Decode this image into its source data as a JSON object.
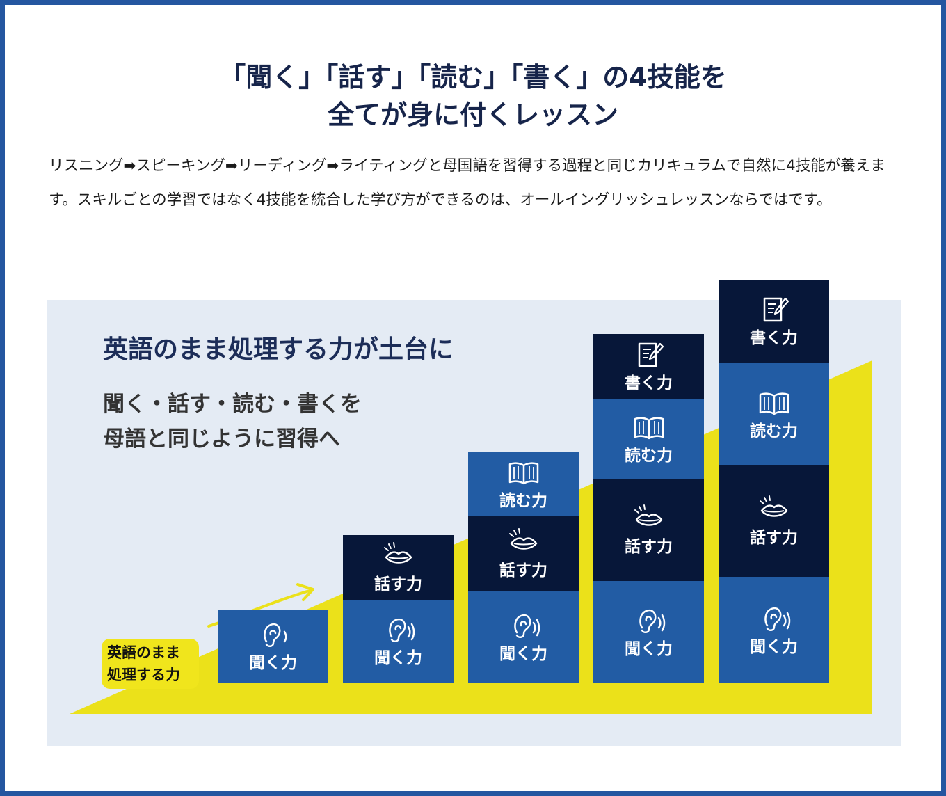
{
  "heading": {
    "line1": "「聞く」「話す」「読む」「書く」の4技能を",
    "line2": "全てが身に付くレッスン"
  },
  "description": "リスニング➡スピーキング➡リーディング➡ライティングと母国語を習得する過程と同じカリキュラムで自然に4技能が養えます。スキルごとの学習ではなく4技能を統合した学び方ができるのは、オールイングリッシュレッスンならではです。",
  "diagram": {
    "headline": "英語のまま処理する力が土台に",
    "sub_line1": "聞く・話す・読む・書くを",
    "sub_line2": "母語と同じように習得へ",
    "badge_line1": "英語のまま",
    "badge_line2": "処理する力",
    "labels": {
      "listen": "聞く力",
      "speak": "話す力",
      "read": "読む力",
      "write": "書く力"
    },
    "colors": {
      "light_block": "#225ca4",
      "dark_block": "#071739",
      "ramp": "#ebe11a",
      "panel": "#e4ebf4",
      "title": "#16244a"
    }
  }
}
